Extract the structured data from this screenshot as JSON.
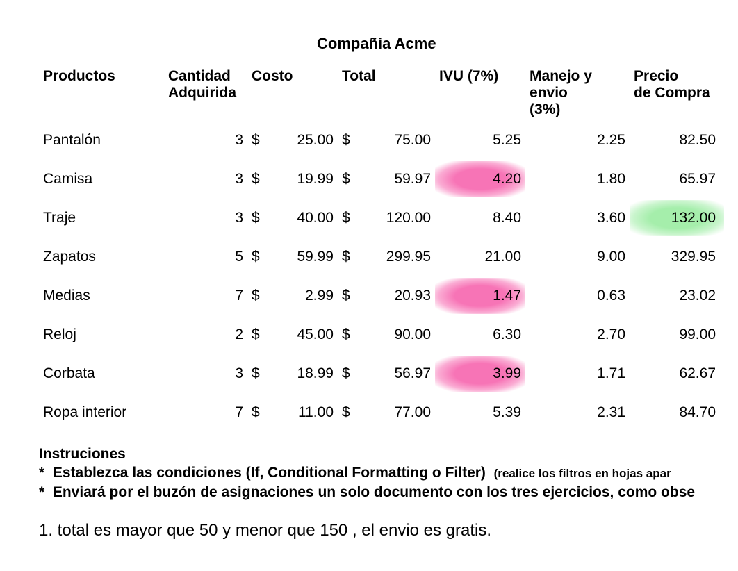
{
  "title": "Compañia Acme",
  "columns": {
    "producto": "Productos",
    "cantidad": "Cantidad Adquirida",
    "costo": "Costo",
    "total": "Total",
    "ivu": "IVU (7%)",
    "envio": "Manejo y envio (3%)",
    "precio": "Precio de Compra"
  },
  "currency_symbol": "$",
  "rows": [
    {
      "producto": "Pantalón",
      "cantidad": "3",
      "costo": "25.00",
      "total": "75.00",
      "ivu": "5.25",
      "envio": "2.25",
      "precio": "82.50",
      "ivu_hl": false,
      "precio_hl": false
    },
    {
      "producto": "Camisa",
      "cantidad": "3",
      "costo": "19.99",
      "total": "59.97",
      "ivu": "4.20",
      "envio": "1.80",
      "precio": "65.97",
      "ivu_hl": true,
      "precio_hl": false
    },
    {
      "producto": "Traje",
      "cantidad": "3",
      "costo": "40.00",
      "total": "120.00",
      "ivu": "8.40",
      "envio": "3.60",
      "precio": "132.00",
      "ivu_hl": false,
      "precio_hl": true
    },
    {
      "producto": "Zapatos",
      "cantidad": "5",
      "costo": "59.99",
      "total": "299.95",
      "ivu": "21.00",
      "envio": "9.00",
      "precio": "329.95",
      "ivu_hl": false,
      "precio_hl": false
    },
    {
      "producto": "Medias",
      "cantidad": "7",
      "costo": "2.99",
      "total": "20.93",
      "ivu": "1.47",
      "envio": "0.63",
      "precio": "23.02",
      "ivu_hl": true,
      "precio_hl": false
    },
    {
      "producto": "Reloj",
      "cantidad": "2",
      "costo": "45.00",
      "total": "90.00",
      "ivu": "6.30",
      "envio": "2.70",
      "precio": "99.00",
      "ivu_hl": false,
      "precio_hl": false
    },
    {
      "producto": "Corbata",
      "cantidad": "3",
      "costo": "18.99",
      "total": "56.97",
      "ivu": "3.99",
      "envio": "1.71",
      "precio": "62.67",
      "ivu_hl": true,
      "precio_hl": false
    },
    {
      "producto": "Ropa interior",
      "cantidad": "7",
      "costo": "11.00",
      "total": "77.00",
      "ivu": "5.39",
      "envio": "2.31",
      "precio": "84.70",
      "ivu_hl": false,
      "precio_hl": false
    }
  ],
  "highlight": {
    "pink": "#f774b6",
    "green": "#a5eeab"
  },
  "instructions": {
    "heading": "Instruciones",
    "line1_main": "Establezca las condiciones (If, Conditional Formatting o Filter)",
    "line1_note": "(realice los filtros en hojas apar",
    "line2": "Enviará por el buzón de asignaciones un solo documento con los tres ejercicios, como obse"
  },
  "question1": "1. total es mayor que 50 y menor que 150 , el envio es gratis."
}
